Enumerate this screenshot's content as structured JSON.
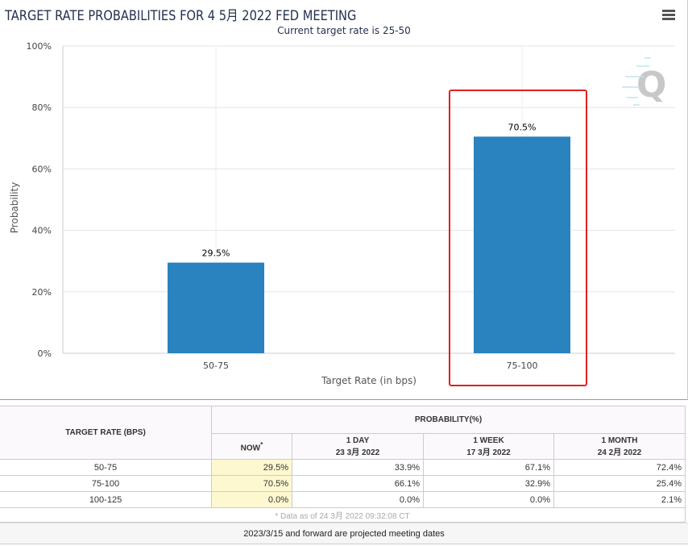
{
  "chart_data": {
    "type": "bar",
    "title": "TARGET RATE PROBABILITIES FOR 4 5月 2022 FED MEETING",
    "subtitle": "Current target rate is 25-50",
    "categories": [
      "50-75",
      "75-100"
    ],
    "values": [
      29.5,
      70.5
    ],
    "data_labels": [
      "29.5%",
      "70.5%"
    ],
    "xlabel": "Target Rate (in bps)",
    "ylabel": "Probability",
    "ylim": [
      0,
      100
    ],
    "yticks": [
      "0%",
      "20%",
      "40%",
      "60%",
      "80%",
      "100%"
    ],
    "highlighted_category": "75-100",
    "bar_color": "#2a82bf",
    "highlight_color": "#e02020"
  },
  "table": {
    "col_rate": "TARGET RATE (BPS)",
    "col_prob": "PROBABILITY(%)",
    "sub": [
      {
        "l1": "NOW",
        "l2": "",
        "sup": "*"
      },
      {
        "l1": "1 DAY",
        "l2": "23 3月 2022"
      },
      {
        "l1": "1 WEEK",
        "l2": "17 3月 2022"
      },
      {
        "l1": "1 MONTH",
        "l2": "24 2月 2022"
      }
    ],
    "rows": [
      [
        "50-75",
        "29.5%",
        "33.9%",
        "67.1%",
        "72.4%"
      ],
      [
        "75-100",
        "70.5%",
        "66.1%",
        "32.9%",
        "25.4%"
      ],
      [
        "100-125",
        "0.0%",
        "0.0%",
        "0.0%",
        "2.1%"
      ]
    ],
    "footnote": "* Data as of 24 3月 2022 09:32:08 CT"
  },
  "note": "2023/3/15 and forward are projected meeting dates"
}
